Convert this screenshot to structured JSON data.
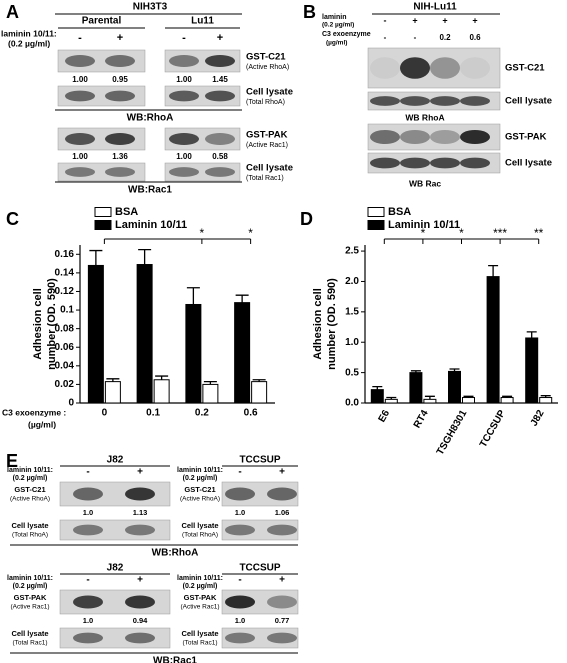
{
  "panel_a": {
    "letter": "A",
    "header": "NIH3T3",
    "treatment": [
      "laminin 10/11:",
      "(0.2 µg/ml)"
    ],
    "groups": [
      {
        "name": "Parental",
        "signs": [
          "-",
          "+"
        ],
        "rhoa_ratios": [
          "1.00",
          "0.95"
        ],
        "rac1_ratios": [
          "1.00",
          "1.36"
        ]
      },
      {
        "name": "Lu11",
        "signs": [
          "-",
          "+"
        ],
        "rhoa_ratios": [
          "1.00",
          "1.45"
        ],
        "rac1_ratios": [
          "1.00",
          "0.58"
        ]
      }
    ],
    "rows": [
      [
        "GST-C21",
        "(Active RhoA)"
      ],
      [
        "Cell lysate",
        "(Total RhoA)"
      ],
      [
        "GST-PAK",
        "(Active Rac1)"
      ],
      [
        "Cell lysate",
        "(Total Rac1)"
      ]
    ],
    "wb": [
      "WB:RhoA",
      "WB:Rac1"
    ]
  },
  "panel_b": {
    "letter": "B",
    "header": "NIH-Lu11",
    "conditions": [
      {
        "label": [
          "laminin",
          "(0.2 µg/ml)"
        ],
        "values": [
          "-",
          "+",
          "+",
          "+"
        ]
      },
      {
        "label": [
          "C3 exoenzyme",
          "(µg/ml)"
        ],
        "values": [
          "-",
          "-",
          "0.2",
          "0.6"
        ]
      }
    ],
    "rows": [
      "GST-C21",
      "Cell lysate",
      "GST-PAK",
      "Cell lysate"
    ],
    "wb": [
      "WB RhoA",
      "WB Rac"
    ]
  },
  "panel_e": {
    "letter": "E",
    "treatment": [
      "laminin 10/11:",
      "(0.2 µg/ml)"
    ],
    "groups": [
      {
        "name": "J82",
        "signs": [
          "-",
          "+"
        ],
        "rhoa_ratios": [
          "1.0",
          "1.13"
        ],
        "rac1_ratios": [
          "1.0",
          "0.94"
        ]
      },
      {
        "name": "TCCSUP",
        "signs": [
          "-",
          "+"
        ],
        "rhoa_ratios": [
          "1.0",
          "1.06"
        ],
        "rac1_ratios": [
          "1.0",
          "0.77"
        ]
      }
    ],
    "rows": [
      [
        "GST-C21",
        "(Active RhoA)"
      ],
      [
        "Cell lysate",
        "(Total RhoA)"
      ],
      [
        "GST-PAK",
        "(Active Rac1)"
      ],
      [
        "Cell lysate",
        "(Total Rac1)"
      ]
    ],
    "wb": [
      "WB:RhoA",
      "WB:Rac1"
    ]
  },
  "chart_data": [
    {
      "type": "bar",
      "letter": "C",
      "y_label": [
        "Adhesion cell",
        "number (OD. 590)"
      ],
      "x_label": [
        "C3 exoenzyme :",
        "(µg/ml)"
      ],
      "categories": [
        "0",
        "0.1",
        "0.2",
        "0.6"
      ],
      "series": [
        {
          "name": "BSA",
          "color": "#ffffff",
          "values": [
            0.023,
            0.025,
            0.02,
            0.023
          ],
          "errors": [
            0.003,
            0.004,
            0.003,
            0.002
          ]
        },
        {
          "name": "Laminin 10/11",
          "color": "#000000",
          "values": [
            0.148,
            0.149,
            0.106,
            0.108
          ],
          "errors": [
            0.016,
            0.016,
            0.018,
            0.008
          ]
        }
      ],
      "significance": [
        null,
        null,
        "*",
        "*"
      ],
      "ylim": [
        0,
        0.17
      ],
      "yticks": [
        0,
        0.02,
        0.04,
        0.06,
        0.08,
        0.1,
        0.12,
        0.14,
        0.16
      ],
      "legend": "upper left"
    },
    {
      "type": "bar",
      "letter": "D",
      "y_label": [
        "Adhesion cell",
        "number (OD. 590)"
      ],
      "categories": [
        "E6",
        "RT4",
        "TSGH8301",
        "TCCSUP",
        "J82"
      ],
      "series": [
        {
          "name": "BSA",
          "color": "#ffffff",
          "values": [
            0.06,
            0.06,
            0.09,
            0.09,
            0.09
          ],
          "errors": [
            0.03,
            0.05,
            0.02,
            0.02,
            0.03
          ]
        },
        {
          "name": "Laminin 10/11",
          "color": "#000000",
          "values": [
            0.22,
            0.5,
            0.52,
            2.08,
            1.07
          ],
          "errors": [
            0.05,
            0.03,
            0.04,
            0.18,
            0.1
          ]
        }
      ],
      "significance": [
        null,
        "*",
        "*",
        "***",
        "**"
      ],
      "ylim": [
        0,
        2.6
      ],
      "yticks": [
        {
          "value": 0,
          "label": "0.0"
        },
        0.5,
        {
          "value": 1,
          "label": "1.0"
        },
        1.5,
        {
          "value": 2,
          "label": "2.0"
        },
        2.5
      ],
      "legend": "upper left"
    }
  ]
}
